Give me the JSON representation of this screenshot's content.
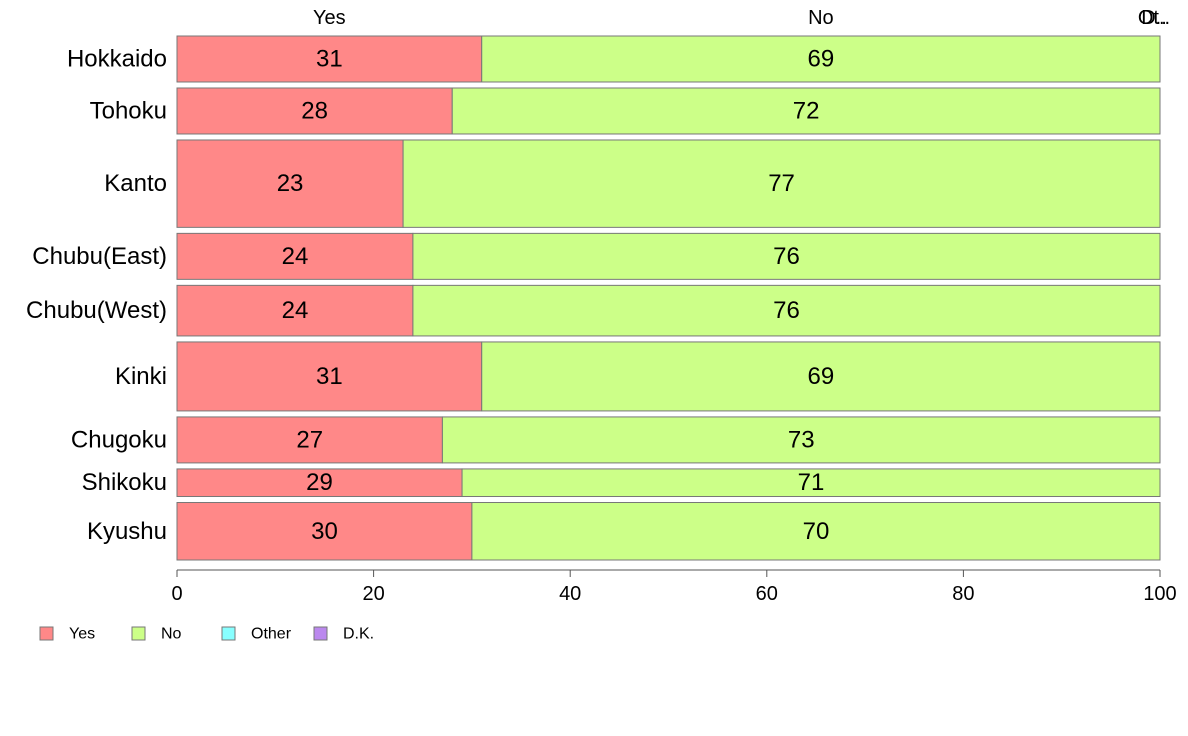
{
  "chart_data": {
    "type": "bar",
    "orientation": "horizontal",
    "stacked": true,
    "categories": [
      "Hokkaido",
      "Tohoku",
      "Kanto",
      "Chubu(East)",
      "Chubu(West)",
      "Kinki",
      "Chugoku",
      "Shikoku",
      "Kyushu"
    ],
    "category_weights": [
      1.0,
      1.0,
      1.9,
      1.0,
      1.1,
      1.5,
      1.0,
      0.6,
      1.25
    ],
    "series": [
      {
        "name": "Yes",
        "color": "#ff8888",
        "values": [
          31,
          28,
          23,
          24,
          24,
          31,
          27,
          29,
          30
        ]
      },
      {
        "name": "No",
        "color": "#ccff88",
        "values": [
          69,
          72,
          77,
          76,
          76,
          69,
          73,
          71,
          70
        ]
      },
      {
        "name": "Other",
        "color": "#88ffff",
        "values": [
          0,
          0,
          0,
          0,
          0,
          0,
          0,
          0,
          0
        ]
      },
      {
        "name": "D.K.",
        "color": "#bb88ee",
        "values": [
          0,
          0,
          0,
          0,
          0,
          0,
          0,
          0,
          0
        ]
      }
    ],
    "top_labels": [
      "Yes",
      "No",
      "Ot..",
      "D.."
    ],
    "xlim": [
      0,
      100
    ],
    "xticks": [
      0,
      20,
      40,
      60,
      80,
      100
    ],
    "legend_position": "bottom-left",
    "grid": false
  }
}
